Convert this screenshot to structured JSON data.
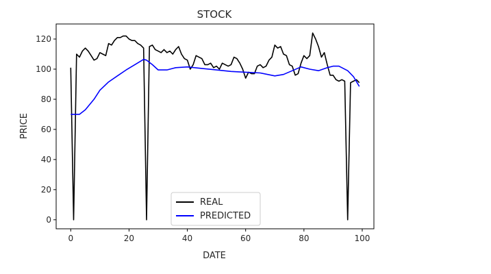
{
  "chart_data": {
    "type": "line",
    "title": "STOCK",
    "xlabel": "DATE",
    "ylabel": "PRICE",
    "xlim": [
      -5,
      104
    ],
    "ylim": [
      -6,
      130
    ],
    "xticks": [
      0,
      20,
      40,
      60,
      80,
      100
    ],
    "yticks": [
      0,
      20,
      40,
      60,
      80,
      100,
      120
    ],
    "grid": false,
    "legend": "lower-center",
    "series": [
      {
        "name": "REAL",
        "color": "#000000",
        "x": [
          0,
          1,
          2,
          3,
          4,
          5,
          6,
          7,
          8,
          9,
          10,
          11,
          12,
          13,
          14,
          15,
          16,
          17,
          18,
          19,
          20,
          21,
          22,
          23,
          24,
          25,
          26,
          27,
          28,
          29,
          30,
          31,
          32,
          33,
          34,
          35,
          36,
          37,
          38,
          39,
          40,
          41,
          42,
          43,
          44,
          45,
          46,
          47,
          48,
          49,
          50,
          51,
          52,
          53,
          54,
          55,
          56,
          57,
          58,
          59,
          60,
          61,
          62,
          63,
          64,
          65,
          66,
          67,
          68,
          69,
          70,
          71,
          72,
          73,
          74,
          75,
          76,
          77,
          78,
          79,
          80,
          81,
          82,
          83,
          84,
          85,
          86,
          87,
          88,
          89,
          90,
          91,
          92,
          93,
          94,
          95,
          96,
          97,
          98,
          99
        ],
        "y": [
          101,
          0,
          110,
          108,
          112,
          114,
          112,
          109,
          106,
          107,
          111,
          110,
          109,
          117,
          116,
          119,
          121,
          121,
          122,
          122,
          120,
          119,
          119,
          117,
          116,
          114,
          0,
          115,
          116,
          113,
          112,
          111,
          113,
          111,
          112,
          110,
          113,
          115,
          110,
          107,
          106,
          100,
          103,
          109,
          108,
          107,
          103,
          103,
          104,
          101,
          102,
          100,
          104,
          103,
          102,
          103,
          108,
          107,
          104,
          100,
          94,
          98,
          97,
          97,
          102,
          103,
          101,
          102,
          106,
          108,
          116,
          114,
          115,
          110,
          109,
          103,
          102,
          96,
          97,
          104,
          109,
          107,
          109,
          124,
          120,
          115,
          108,
          111,
          103,
          96,
          96,
          93,
          92,
          93,
          92,
          0,
          91,
          92,
          93,
          91
        ]
      },
      {
        "name": "PREDICTED",
        "color": "#0000ff",
        "x": [
          0,
          3,
          5,
          8,
          10,
          13,
          16,
          19,
          22,
          25,
          26,
          28,
          30,
          33,
          36,
          40,
          45,
          50,
          55,
          60,
          65,
          70,
          73,
          76,
          79,
          82,
          85,
          88,
          90,
          92,
          95,
          97,
          99
        ],
        "y": [
          70,
          70,
          73,
          80,
          86,
          91.5,
          95.5,
          99.5,
          103,
          106.5,
          106,
          103,
          99.5,
          99.5,
          101,
          101.5,
          100.5,
          99.5,
          98.5,
          98,
          97.5,
          95.5,
          96.5,
          99,
          101.5,
          100,
          99,
          101,
          102,
          102,
          99,
          95,
          88.5
        ]
      }
    ]
  }
}
